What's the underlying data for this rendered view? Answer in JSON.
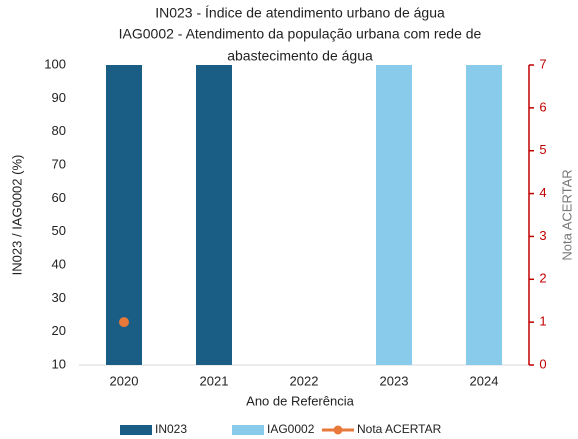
{
  "chart_data": {
    "type": "bar",
    "title_lines": [
      "IN023 - Índice de atendimento urbano de água",
      "IAG0002 - Atendimento da população urbana com rede de",
      "abastecimento de água"
    ],
    "x_label": "Ano de Referência",
    "y_label": "IN023 / IAG0002 (%)",
    "y2_label": "Nota ACERTAR",
    "categories": [
      "2020",
      "2021",
      "2022",
      "2023",
      "2024"
    ],
    "series": [
      {
        "name": "IN023",
        "type": "bar",
        "color": "#1b5e85",
        "values": [
          100,
          100,
          null,
          null,
          null
        ]
      },
      {
        "name": "IAG0002",
        "type": "bar",
        "color": "#88cbea",
        "values": [
          null,
          null,
          null,
          100,
          100
        ]
      },
      {
        "name": "Nota ACERTAR",
        "type": "line",
        "axis": "y2",
        "color": "#e8793a",
        "values": [
          1,
          null,
          null,
          null,
          null
        ]
      }
    ],
    "ylim": [
      10,
      100
    ],
    "yticks": [
      10,
      20,
      30,
      40,
      50,
      60,
      70,
      80,
      90,
      100
    ],
    "y2lim": [
      0,
      7
    ],
    "y2ticks": [
      0,
      1,
      2,
      3,
      4,
      5,
      6,
      7
    ],
    "y2color": "#c00000",
    "grid": false,
    "legend": "bottom"
  }
}
